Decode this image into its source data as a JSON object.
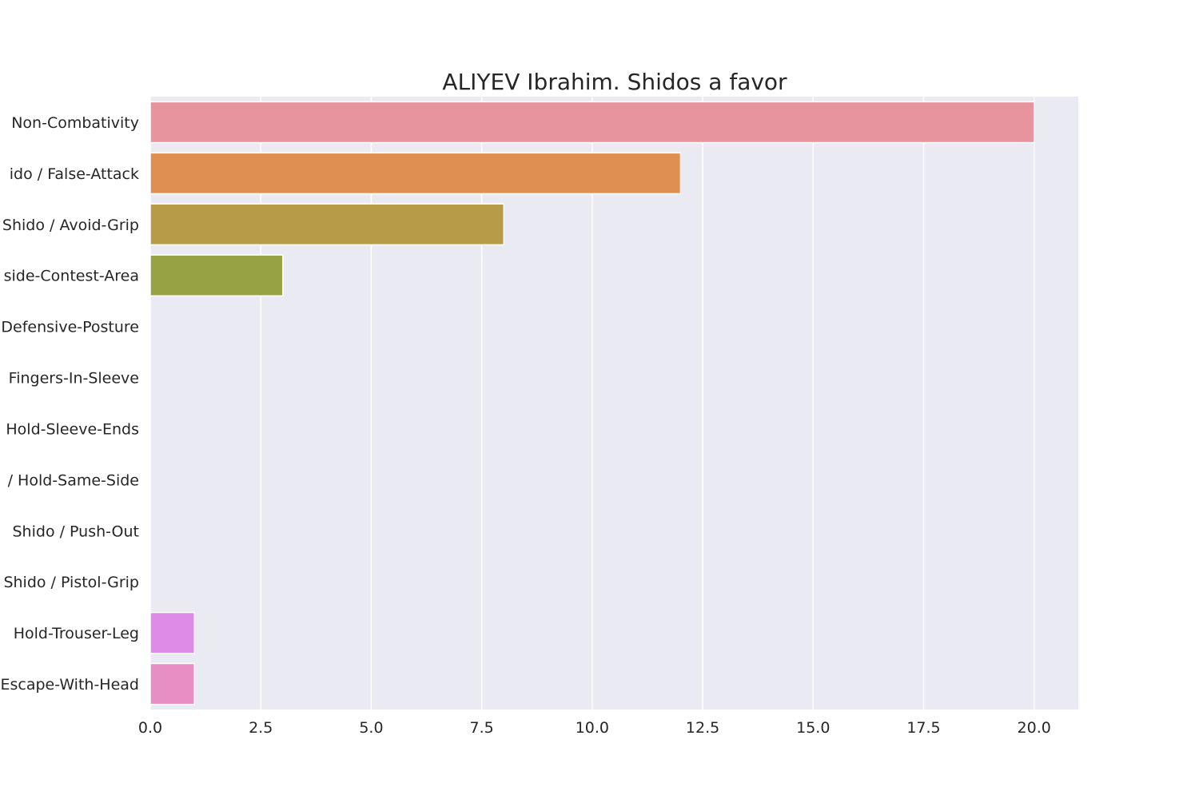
{
  "chart_data": {
    "type": "bar",
    "orientation": "horizontal",
    "title": "ALIYEV Ibrahim. Shidos a favor",
    "xlabel": "",
    "ylabel": "",
    "xlim": [
      0,
      21
    ],
    "xticks": [
      "0.0",
      "2.5",
      "5.0",
      "7.5",
      "10.0",
      "12.5",
      "15.0",
      "17.5",
      "20.0"
    ],
    "grid": true,
    "background": "#eaeaf2",
    "categories": [
      "Non-Combativity",
      "ido / False-Attack",
      "Shido / Avoid-Grip",
      "side-Contest-Area",
      "Defensive-Posture",
      "Fingers-In-Sleeve",
      "Hold-Sleeve-Ends",
      "/ Hold-Same-Side",
      "Shido / Push-Out",
      "Shido / Pistol-Grip",
      "Hold-Trouser-Leg",
      "Escape-With-Head"
    ],
    "values": [
      20,
      12,
      8,
      3,
      0,
      0,
      0,
      0,
      0,
      0,
      1,
      1
    ],
    "colors": [
      "#e8949f",
      "#e08f52",
      "#b89b49",
      "#97a245",
      "#5bab52",
      "#5aaa85",
      "#57a8a0",
      "#5aa6b8",
      "#6fa2d6",
      "#a895e6",
      "#de8be6",
      "#e78fc5"
    ]
  }
}
